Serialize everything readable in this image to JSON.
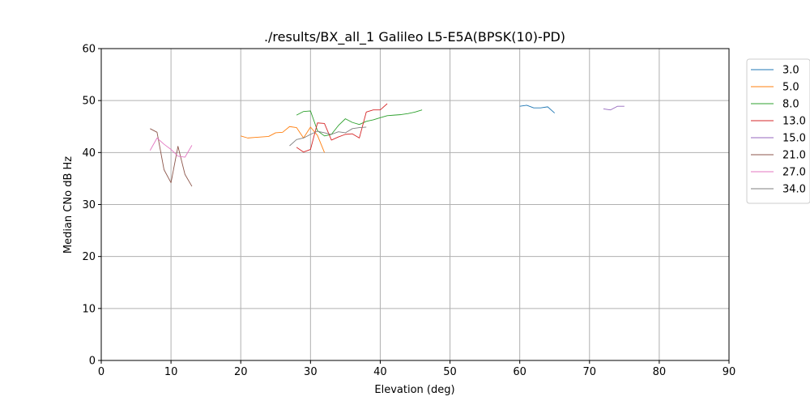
{
  "chart_data": {
    "type": "line",
    "title": "./results/BX_all_1 Galileo L5-E5A(BPSK(10)-PD)",
    "xlabel": "Elevation (deg)",
    "ylabel": "Median CNo dB Hz",
    "xlim": [
      0,
      90
    ],
    "ylim": [
      0,
      60
    ],
    "xticks": [
      "0",
      "10",
      "20",
      "30",
      "40",
      "50",
      "60",
      "70",
      "80",
      "90"
    ],
    "yticks": [
      "0",
      "10",
      "20",
      "30",
      "40",
      "50",
      "60"
    ],
    "grid": true,
    "legend_position": "outside-top-right",
    "series": [
      {
        "name": "3.0",
        "color": "#1f77b4",
        "points": [
          [
            60,
            48.9
          ],
          [
            61,
            49.1
          ],
          [
            62,
            48.6
          ],
          [
            63,
            48.6
          ],
          [
            64,
            48.8
          ],
          [
            65,
            47.6
          ]
        ]
      },
      {
        "name": "5.0",
        "color": "#ff7f0e",
        "points": [
          [
            20,
            43.2
          ],
          [
            21,
            42.8
          ],
          [
            22,
            42.9
          ],
          [
            23,
            43.0
          ],
          [
            24,
            43.1
          ],
          [
            25,
            43.8
          ],
          [
            26,
            43.9
          ],
          [
            27,
            45.0
          ],
          [
            28,
            44.8
          ],
          [
            29,
            42.8
          ],
          [
            30,
            44.9
          ],
          [
            31,
            43.3
          ],
          [
            32,
            40.0
          ]
        ]
      },
      {
        "name": "8.0",
        "color": "#2ca02c",
        "points": [
          [
            28,
            47.2
          ],
          [
            29,
            47.9
          ],
          [
            30,
            48.0
          ],
          [
            31,
            44.2
          ],
          [
            32,
            43.2
          ],
          [
            33,
            43.5
          ],
          [
            34,
            45.2
          ],
          [
            35,
            46.5
          ],
          [
            36,
            45.8
          ],
          [
            37,
            45.4
          ],
          [
            38,
            46.0
          ],
          [
            39,
            46.3
          ],
          [
            40,
            46.7
          ],
          [
            41,
            47.1
          ],
          [
            42,
            47.2
          ],
          [
            43,
            47.3
          ],
          [
            44,
            47.5
          ],
          [
            45,
            47.8
          ],
          [
            46,
            48.2
          ]
        ]
      },
      {
        "name": "13.0",
        "color": "#d62728",
        "points": [
          [
            28,
            41.0
          ],
          [
            29,
            40.1
          ],
          [
            30,
            40.6
          ],
          [
            31,
            45.7
          ],
          [
            32,
            45.6
          ],
          [
            33,
            42.4
          ],
          [
            34,
            43.0
          ],
          [
            35,
            43.5
          ],
          [
            36,
            43.6
          ],
          [
            37,
            42.8
          ],
          [
            38,
            47.8
          ],
          [
            39,
            48.2
          ],
          [
            40,
            48.2
          ],
          [
            41,
            49.4
          ]
        ]
      },
      {
        "name": "15.0",
        "color": "#9467bd",
        "points": [
          [
            72,
            48.4
          ],
          [
            73,
            48.2
          ],
          [
            74,
            48.9
          ],
          [
            75,
            48.9
          ]
        ]
      },
      {
        "name": "21.0",
        "color": "#8c564b",
        "points": [
          [
            7,
            44.6
          ],
          [
            8,
            43.9
          ],
          [
            9,
            36.7
          ],
          [
            10,
            34.2
          ],
          [
            11,
            41.2
          ],
          [
            12,
            35.8
          ],
          [
            13,
            33.5
          ]
        ]
      },
      {
        "name": "27.0",
        "color": "#e377c2",
        "points": [
          [
            7,
            40.4
          ],
          [
            8,
            42.8
          ],
          [
            9,
            41.6
          ],
          [
            10,
            40.6
          ],
          [
            11,
            39.3
          ],
          [
            12,
            39.1
          ],
          [
            13,
            41.4
          ]
        ]
      },
      {
        "name": "34.0",
        "color": "#7f7f7f",
        "points": [
          [
            27,
            41.3
          ],
          [
            28,
            42.5
          ],
          [
            29,
            42.8
          ],
          [
            30,
            43.5
          ],
          [
            31,
            44.1
          ],
          [
            32,
            43.8
          ],
          [
            33,
            43.5
          ],
          [
            34,
            44.0
          ],
          [
            35,
            43.8
          ],
          [
            36,
            44.6
          ],
          [
            37,
            44.8
          ],
          [
            38,
            44.9
          ]
        ]
      }
    ]
  }
}
